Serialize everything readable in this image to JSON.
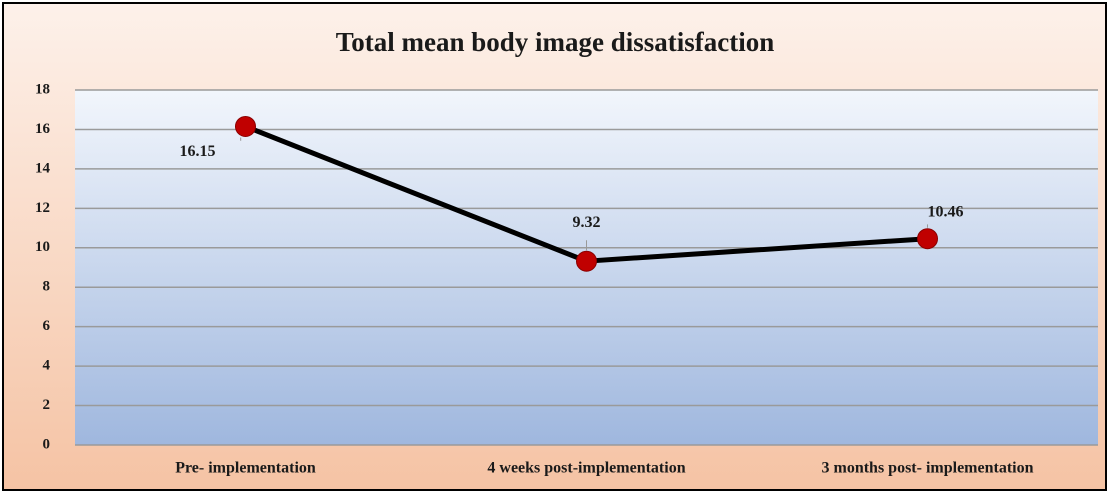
{
  "chart_data": {
    "type": "line",
    "title": "Total mean body image dissatisfaction",
    "categories": [
      "Pre- implementation",
      "4 weeks post-implementation",
      "3 months post- implementation"
    ],
    "series": [
      {
        "name": "Total mean body image dissatisfaction",
        "color": "#000000",
        "marker_color": "#c00000",
        "values": [
          16.15,
          9.32,
          10.46
        ]
      }
    ],
    "ylim": [
      0,
      18
    ],
    "yticks": [
      0,
      2,
      4,
      6,
      8,
      10,
      12,
      14,
      16,
      18
    ],
    "grid": true
  }
}
